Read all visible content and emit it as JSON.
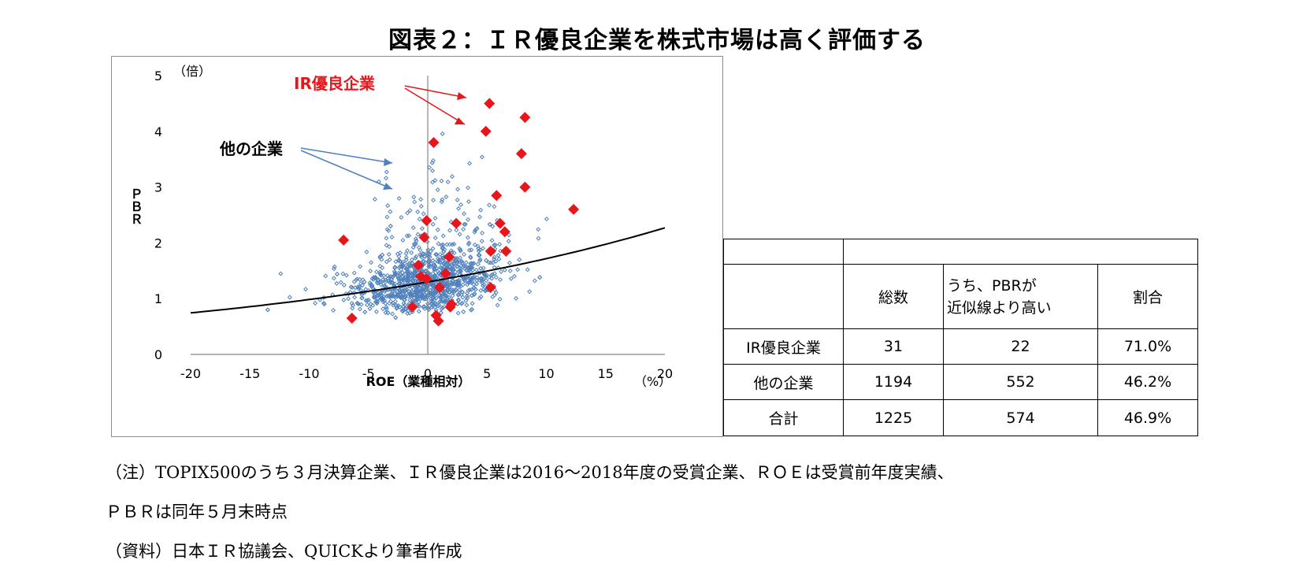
{
  "title": "図表２：ＩＲ優良企業を株式市場は高く評価する",
  "chart_data": {
    "type": "scatter",
    "xlabel": "ROE（業種相対）",
    "xunit": "（%）",
    "ylabel": "ＰＢＲ",
    "yunit": "（倍）",
    "xlim": [
      -20,
      20
    ],
    "ylim": [
      0,
      5
    ],
    "x_ticks": [
      "-20",
      "-15",
      "-10",
      "-5",
      "0",
      "5",
      "10",
      "15",
      "20"
    ],
    "y_ticks": [
      "0",
      "1",
      "2",
      "3",
      "4",
      "5"
    ],
    "series": [
      {
        "name": "IR優良企業",
        "color": "#e8161a",
        "marker": "diamond-large",
        "points": [
          [
            5.2,
            4.5
          ],
          [
            8.2,
            4.25
          ],
          [
            4.9,
            4.0
          ],
          [
            0.5,
            3.8
          ],
          [
            7.9,
            3.6
          ],
          [
            8.2,
            3.0
          ],
          [
            5.8,
            2.85
          ],
          [
            12.3,
            2.6
          ],
          [
            -0.1,
            2.4
          ],
          [
            2.4,
            2.35
          ],
          [
            6.1,
            2.35
          ],
          [
            6.5,
            2.2
          ],
          [
            -0.3,
            2.1
          ],
          [
            -7.1,
            2.05
          ],
          [
            5.3,
            1.85
          ],
          [
            6.6,
            1.85
          ],
          [
            1.8,
            1.75
          ],
          [
            -0.8,
            1.6
          ],
          [
            -0.6,
            1.4
          ],
          [
            1.5,
            1.45
          ],
          [
            -0.1,
            1.35
          ],
          [
            1.0,
            1.2
          ],
          [
            5.3,
            1.2
          ],
          [
            -1.3,
            0.85
          ],
          [
            1.9,
            0.85
          ],
          [
            2.0,
            0.9
          ],
          [
            -6.4,
            0.65
          ],
          [
            0.7,
            0.7
          ],
          [
            0.9,
            0.6
          ]
        ]
      },
      {
        "name": "他の企業",
        "color": "#4f81bd",
        "marker": "diamond-small",
        "points": []
      }
    ],
    "trendline": {
      "type": "exponential",
      "points": [
        [
          -20,
          0.75
        ],
        [
          -10,
          0.98
        ],
        [
          0,
          1.3
        ],
        [
          10,
          1.72
        ],
        [
          20,
          2.27
        ]
      ]
    },
    "annotations": {
      "ir_label": "IR優良企業",
      "other_label": "他の企業"
    },
    "grid": false,
    "legend": "none"
  },
  "table": {
    "headers": [
      "",
      "総数",
      "うち、PBRが近似線より高い",
      "割合"
    ],
    "header_line1": "うち、PBRが",
    "header_line2": "近似線より高い",
    "rows": [
      {
        "label": "IR優良企業",
        "total": "31",
        "above": "22",
        "ratio": "71.0%"
      },
      {
        "label": "他の企業",
        "total": "1194",
        "above": "552",
        "ratio": "46.2%"
      },
      {
        "label": "合計",
        "total": "1225",
        "above": "574",
        "ratio": "46.9%"
      }
    ]
  },
  "notes": {
    "line1": "（注）TOPIX500のうち３月決算企業、ＩＲ優良企業は2016～2018年度の受賞企業、ＲＯＥは受賞前年度実績、",
    "line2": "ＰＢＲは同年５月末時点",
    "line3": "（資料）日本ＩＲ協議会、QUICKより筆者作成"
  }
}
